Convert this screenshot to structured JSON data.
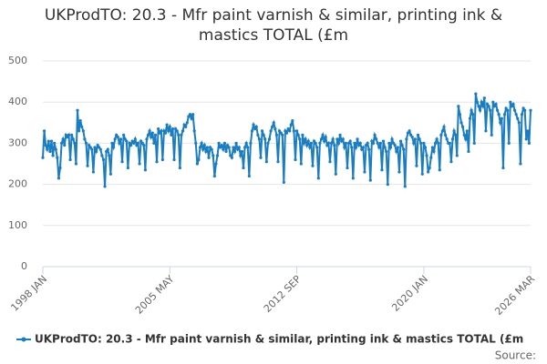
{
  "chart_data": {
    "type": "line",
    "title": "UKProdTO: 20.3 - Mfr paint varnish & similar, printing ink & mastics TOTAL (£m",
    "source": "Source:",
    "categories": [
      "1998 JAN",
      null,
      null,
      null,
      null,
      null,
      null,
      null,
      null,
      null,
      null,
      null,
      null,
      null,
      null,
      null,
      null,
      null,
      null,
      null,
      null,
      null,
      null,
      null,
      null,
      null,
      null,
      null,
      null,
      null,
      null,
      null,
      null,
      null,
      null,
      null,
      null,
      null,
      null,
      null,
      null,
      null,
      null,
      null,
      null,
      null,
      null,
      null,
      null,
      null,
      null,
      null,
      null,
      null,
      null,
      null,
      null,
      null,
      null,
      null,
      null,
      null,
      null,
      null,
      null,
      null,
      null,
      null,
      null,
      null,
      null,
      null,
      null,
      null,
      null,
      null,
      null,
      null,
      null,
      null,
      null,
      null,
      null,
      null,
      null,
      null,
      null,
      null,
      "2005 MAY",
      null,
      null,
      null,
      null,
      null,
      null,
      null,
      null,
      null,
      null,
      null,
      null,
      null,
      null,
      null,
      null,
      null,
      null,
      null,
      null,
      null,
      null,
      null,
      null,
      null,
      null,
      null,
      null,
      null,
      null,
      null,
      null,
      null,
      null,
      null,
      null,
      null,
      null,
      null,
      null,
      null,
      null,
      null,
      null,
      null,
      null,
      null,
      null,
      null,
      null,
      null,
      null,
      null,
      null,
      null,
      null,
      null,
      null,
      null,
      null,
      null,
      null,
      null,
      null,
      null,
      null,
      null,
      null,
      null,
      null,
      null,
      null,
      null,
      null,
      null,
      null,
      null,
      null,
      null,
      null,
      null,
      null,
      null,
      null,
      null,
      null,
      null,
      "2012 SEP",
      null,
      null,
      null,
      null,
      null,
      null,
      null,
      null,
      null,
      null,
      null,
      null,
      null,
      null,
      null,
      null,
      null,
      null,
      null,
      null,
      null,
      null,
      null,
      null,
      null,
      null,
      null,
      null,
      null,
      null,
      null,
      null,
      null,
      null,
      null,
      null,
      null,
      null,
      null,
      null,
      null,
      null,
      null,
      null,
      null,
      null,
      null,
      null,
      null,
      null,
      null,
      null,
      null,
      null,
      null,
      null,
      null,
      null,
      null,
      null,
      null,
      null,
      null,
      null,
      null,
      null,
      null,
      null,
      null,
      null,
      null,
      null,
      null,
      null,
      null,
      null,
      null,
      null,
      null,
      null,
      null,
      null,
      null,
      null,
      null,
      null,
      null,
      "2020 JAN",
      null,
      null,
      null,
      null,
      null,
      null,
      null,
      null,
      null,
      null,
      null,
      null,
      null,
      null,
      null,
      null,
      null,
      null,
      null,
      null,
      null,
      null,
      null,
      null,
      null,
      null,
      null,
      null,
      null,
      null,
      null,
      null,
      null,
      null,
      null,
      null,
      null,
      null,
      null,
      null,
      null,
      null,
      null,
      null,
      null,
      null,
      null,
      null,
      null,
      null,
      null,
      null,
      null,
      null,
      null,
      null,
      null,
      null,
      null,
      null,
      null,
      null,
      null,
      null,
      null,
      null,
      null,
      null,
      null,
      null,
      null,
      null,
      null,
      "2026 MAR"
    ],
    "series": [
      {
        "name": "UKProdTO: 20.3 - Mfr paint varnish & similar, printing ink & mastics TOTAL (£m",
        "color": "#1a7dc1",
        "values": [
          265,
          330,
          295,
          285,
          305,
          280,
          305,
          270,
          300,
          285,
          265,
          215,
          240,
          300,
          310,
          295,
          320,
          315,
          320,
          260,
          320,
          310,
          300,
          250,
          380,
          330,
          355,
          340,
          330,
          310,
          300,
          245,
          295,
          290,
          285,
          230,
          290,
          280,
          295,
          290,
          285,
          270,
          260,
          195,
          280,
          285,
          270,
          225,
          300,
          290,
          310,
          320,
          315,
          300,
          310,
          255,
          320,
          310,
          305,
          240,
          300,
          295,
          305,
          300,
          310,
          295,
          300,
          250,
          305,
          300,
          295,
          235,
          310,
          320,
          330,
          315,
          325,
          300,
          320,
          255,
          335,
          325,
          330,
          260,
          330,
          325,
          345,
          330,
          340,
          320,
          335,
          260,
          335,
          330,
          320,
          240,
          320,
          330,
          345,
          340,
          350,
          365,
          370,
          360,
          370,
          330,
          300,
          250,
          260,
          290,
          300,
          285,
          295,
          280,
          290,
          265,
          290,
          285,
          270,
          220,
          250,
          270,
          300,
          290,
          295,
          285,
          300,
          280,
          295,
          290,
          270,
          265,
          290,
          280,
          300,
          285,
          290,
          270,
          280,
          240,
          290,
          300,
          290,
          220,
          300,
          330,
          345,
          335,
          340,
          320,
          310,
          265,
          330,
          320,
          310,
          255,
          300,
          310,
          330,
          340,
          350,
          335,
          320,
          255,
          330,
          325,
          320,
          205,
          330,
          325,
          335,
          330,
          345,
          355,
          330,
          260,
          330,
          320,
          310,
          250,
          320,
          300,
          310,
          295,
          305,
          290,
          300,
          245,
          305,
          300,
          290,
          215,
          300,
          310,
          320,
          305,
          315,
          295,
          300,
          255,
          300,
          310,
          295,
          225,
          310,
          300,
          320,
          305,
          310,
          290,
          300,
          240,
          300,
          305,
          290,
          215,
          300,
          290,
          310,
          295,
          300,
          285,
          290,
          230,
          295,
          300,
          285,
          210,
          305,
          300,
          320,
          310,
          300,
          290,
          300,
          235,
          305,
          290,
          280,
          200,
          300,
          290,
          310,
          300,
          295,
          280,
          290,
          230,
          305,
          295,
          285,
          195,
          310,
          325,
          330,
          320,
          315,
          300,
          310,
          245,
          320,
          310,
          300,
          225,
          300,
          290,
          270,
          230,
          240,
          265,
          290,
          280,
          300,
          310,
          300,
          235,
          320,
          330,
          340,
          320,
          310,
          300,
          300,
          255,
          310,
          330,
          320,
          270,
          390,
          370,
          350,
          340,
          320,
          310,
          330,
          280,
          360,
          380,
          370,
          300,
          420,
          400,
          390,
          380,
          400,
          390,
          410,
          330,
          395,
          390,
          380,
          320,
          400,
          390,
          395,
          380,
          370,
          350,
          360,
          240,
          370,
          385,
          380,
          300,
          400,
          390,
          395,
          380,
          370,
          360,
          350,
          250,
          370,
          385,
          380,
          310,
          330,
          300,
          380
        ]
      }
    ],
    "ylim": [
      0,
      500
    ],
    "yticks": [
      0,
      100,
      200,
      300,
      400,
      500
    ],
    "grid": true
  }
}
